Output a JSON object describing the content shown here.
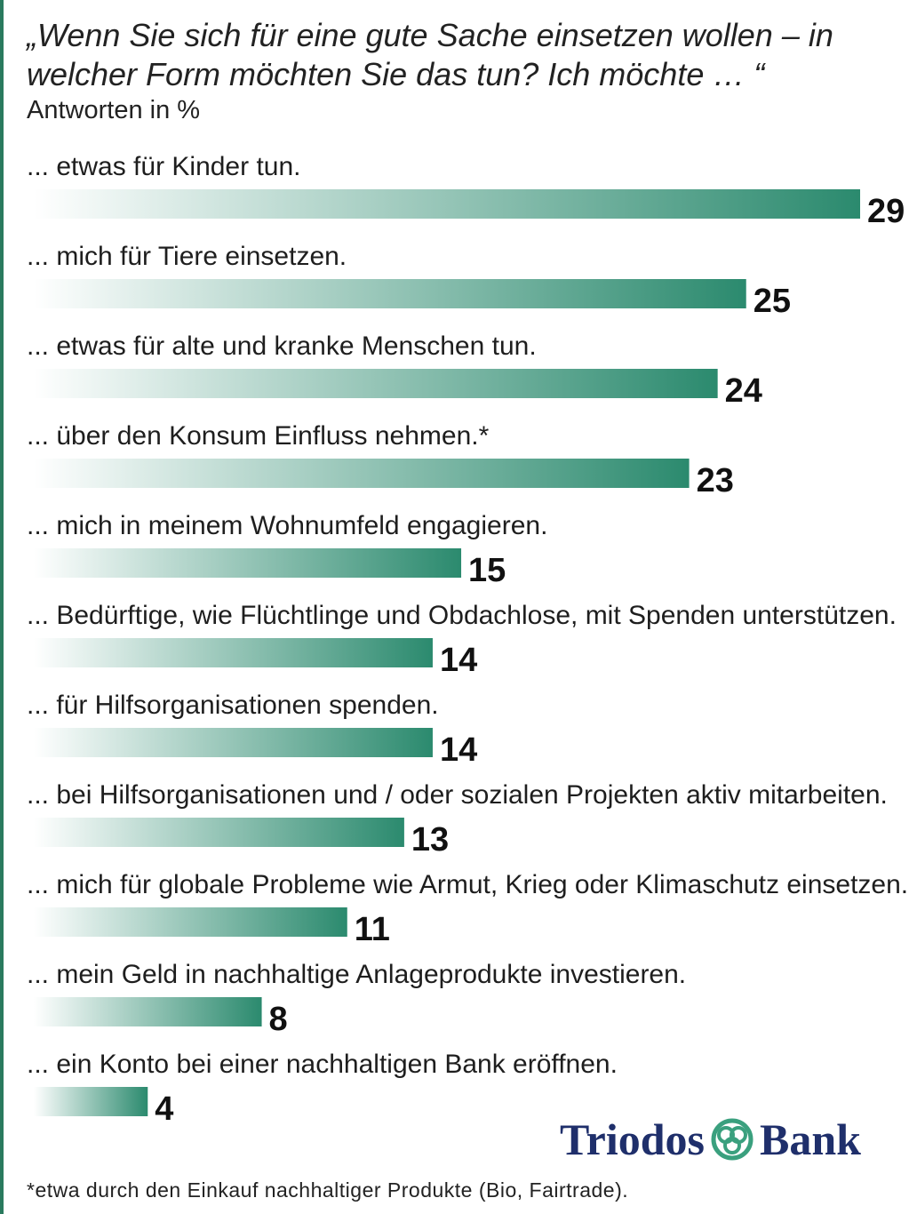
{
  "header": {
    "title": "„Wenn Sie sich für eine gute Sache einsetzen wollen – in welcher Form möchten Sie das tun? Ich möchte … “",
    "subtitle": "Antworten in %"
  },
  "chart_data": {
    "type": "bar",
    "orientation": "horizontal",
    "title": "„Wenn Sie sich für eine gute Sache einsetzen wollen – in welcher Form möchten Sie das tun? Ich möchte … “",
    "subtitle": "Antworten in %",
    "categories": [
      "... etwas für Kinder tun.",
      "... mich für Tiere einsetzen.",
      "... etwas für alte und kranke Menschen tun.",
      "... über den Konsum Einfluss nehmen.*",
      "... mich in meinem Wohnumfeld engagieren.",
      "... Bedürftige, wie Flüchtlinge und Obdachlose, mit Spenden unterstützen.",
      "... für Hilfsorganisationen spenden.",
      "... bei Hilfsorganisationen und / oder sozialen Projekten aktiv mitarbeiten.",
      "... mich für globale Probleme wie Armut, Krieg oder Klimaschutz einsetzen.",
      "... mein Geld in nachhaltige Anlageprodukte investieren.",
      "... ein Konto bei einer nachhaltigen Bank eröffnen."
    ],
    "values": [
      29,
      25,
      24,
      23,
      15,
      14,
      14,
      13,
      11,
      8,
      4
    ],
    "value_labels": [
      "29",
      "25",
      "24",
      "23",
      "15",
      "14",
      "14",
      "13",
      "11",
      "8",
      "4"
    ],
    "xlim": [
      0,
      29
    ],
    "grid": false,
    "legend": "none",
    "colors": {
      "bar_start": "#ffffff",
      "bar_end": "#2b8a6e"
    }
  },
  "brand": {
    "logo_left": "Triodos",
    "logo_right": "Bank",
    "colors": {
      "text": "#1f2f6b",
      "mark": "#3aa07e"
    }
  },
  "footnote": "*etwa durch den Einkauf nachhaltiger Produkte (Bio, Fairtrade)."
}
